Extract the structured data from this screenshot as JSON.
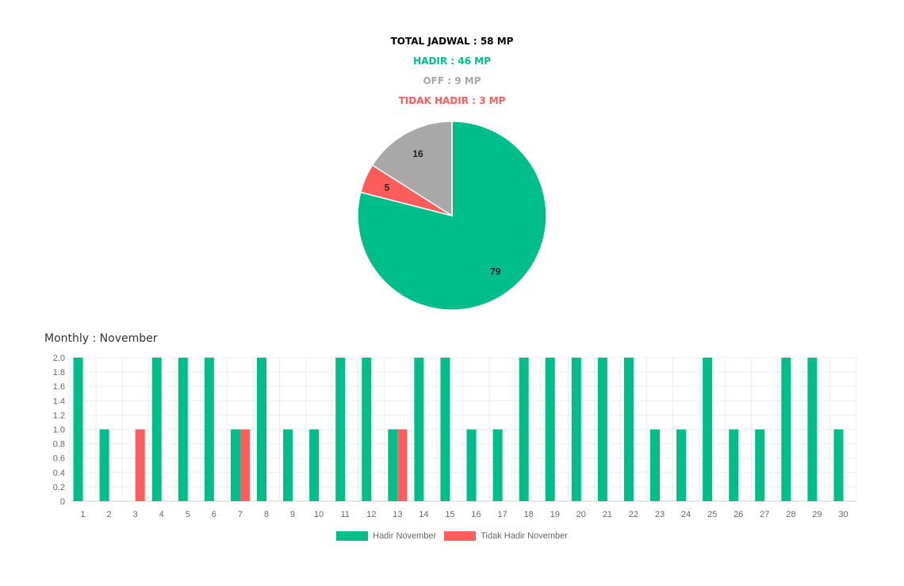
{
  "summary": {
    "total": "TOTAL JADWAL : 58 MP",
    "hadir": "HADIR : 46 MP",
    "off": "OFF : 9 MP",
    "tidak_hadir": "TIDAK HADIR : 3 MP"
  },
  "colors": {
    "hadir": "#00BE8A",
    "off": "#A8A8A8",
    "tidak_hadir": "#FF5C5C",
    "total": "#000000"
  },
  "monthly_title": "Monthly : November",
  "chart_data": [
    {
      "type": "pie",
      "labels": [
        "Hadir",
        "Tidak Hadir",
        "Off"
      ],
      "values": [
        79,
        5,
        16
      ],
      "colors": [
        "#00BE8A",
        "#FF5C5C",
        "#A8A8A8"
      ]
    },
    {
      "type": "bar",
      "categories": [
        "1",
        "2",
        "3",
        "4",
        "5",
        "6",
        "7",
        "8",
        "9",
        "10",
        "11",
        "12",
        "13",
        "14",
        "15",
        "16",
        "17",
        "18",
        "19",
        "20",
        "21",
        "22",
        "23",
        "24",
        "25",
        "26",
        "27",
        "28",
        "29",
        "30"
      ],
      "series": [
        {
          "name": "Hadir November",
          "color": "#00BE8A",
          "values": [
            2,
            1,
            0,
            2,
            2,
            2,
            1,
            2,
            1,
            1,
            2,
            2,
            1,
            2,
            2,
            1,
            1,
            2,
            2,
            2,
            2,
            2,
            1,
            1,
            2,
            1,
            1,
            2,
            2,
            1
          ]
        },
        {
          "name": "Tidak Hadir November",
          "color": "#FF5C5C",
          "values": [
            0,
            0,
            1,
            0,
            0,
            0,
            1,
            0,
            0,
            0,
            0,
            0,
            1,
            0,
            0,
            0,
            0,
            0,
            0,
            0,
            0,
            0,
            0,
            0,
            0,
            0,
            0,
            0,
            0,
            0
          ]
        }
      ],
      "ylim": [
        0,
        2.0
      ],
      "yticks": [
        "0",
        "0.2",
        "0.4",
        "0.6",
        "0.8",
        "1.0",
        "1.2",
        "1.4",
        "1.6",
        "1.8",
        "2.0"
      ],
      "grid": true,
      "legend": "bottom"
    }
  ]
}
